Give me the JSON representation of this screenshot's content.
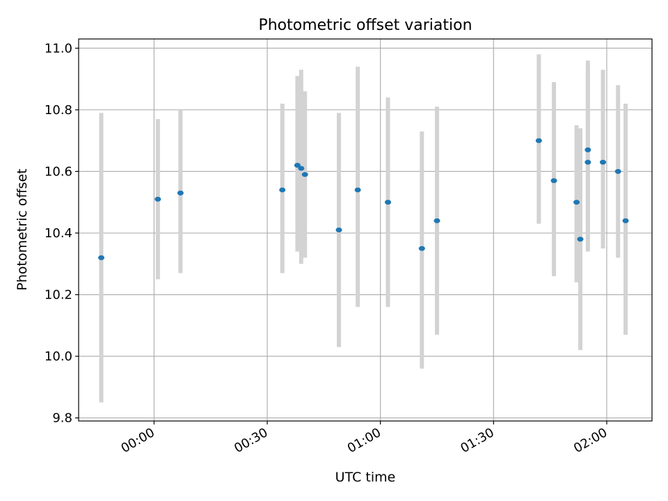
{
  "chart_data": {
    "type": "scatter",
    "title": "Photometric offset variation",
    "xlabel": "UTC time",
    "ylabel": "Photometric offset",
    "x_unit": "HH:MM",
    "xlim": [
      "23:40",
      "02:12"
    ],
    "ylim": [
      9.79,
      11.03
    ],
    "x_ticks": [
      "00:00",
      "00:30",
      "01:00",
      "01:30",
      "02:00"
    ],
    "y_ticks": [
      9.8,
      10.0,
      10.2,
      10.4,
      10.6,
      10.8,
      11.0
    ],
    "y_tick_labels": [
      "9.8",
      "10.0",
      "10.2",
      "10.4",
      "10.6",
      "10.8",
      "11.0"
    ],
    "grid": true,
    "legend": "none",
    "colors": {
      "points": "#1f77b4",
      "errorbars": "#d3d3d3",
      "grid": "#b0b0b0"
    },
    "points": [
      {
        "t": "23:46",
        "y": 10.32,
        "lo": 9.85,
        "hi": 10.79
      },
      {
        "t": "00:01",
        "y": 10.51,
        "lo": 10.25,
        "hi": 10.77
      },
      {
        "t": "00:07",
        "y": 10.53,
        "lo": 10.27,
        "hi": 10.8
      },
      {
        "t": "00:34",
        "y": 10.54,
        "lo": 10.27,
        "hi": 10.82
      },
      {
        "t": "00:38",
        "y": 10.62,
        "lo": 10.34,
        "hi": 10.91
      },
      {
        "t": "00:39",
        "y": 10.61,
        "lo": 10.3,
        "hi": 10.93
      },
      {
        "t": "00:40",
        "y": 10.59,
        "lo": 10.32,
        "hi": 10.86
      },
      {
        "t": "00:49",
        "y": 10.41,
        "lo": 10.03,
        "hi": 10.79
      },
      {
        "t": "00:54",
        "y": 10.54,
        "lo": 10.16,
        "hi": 10.94
      },
      {
        "t": "01:02",
        "y": 10.5,
        "lo": 10.16,
        "hi": 10.84
      },
      {
        "t": "01:11",
        "y": 10.35,
        "lo": 9.96,
        "hi": 10.73
      },
      {
        "t": "01:15",
        "y": 10.44,
        "lo": 10.07,
        "hi": 10.81
      },
      {
        "t": "01:42",
        "y": 10.7,
        "lo": 10.43,
        "hi": 10.98
      },
      {
        "t": "01:46",
        "y": 10.57,
        "lo": 10.26,
        "hi": 10.89
      },
      {
        "t": "01:52",
        "y": 10.5,
        "lo": 10.24,
        "hi": 10.75
      },
      {
        "t": "01:53",
        "y": 10.38,
        "lo": 10.02,
        "hi": 10.74
      },
      {
        "t": "01:55",
        "y": 10.67,
        "lo": 10.38,
        "hi": 10.96
      },
      {
        "t": "01:55",
        "y": 10.63,
        "lo": 10.34,
        "hi": 10.93
      },
      {
        "t": "01:59",
        "y": 10.63,
        "lo": 10.35,
        "hi": 10.93
      },
      {
        "t": "02:03",
        "y": 10.6,
        "lo": 10.32,
        "hi": 10.88
      },
      {
        "t": "02:05",
        "y": 10.44,
        "lo": 10.07,
        "hi": 10.82
      }
    ]
  }
}
